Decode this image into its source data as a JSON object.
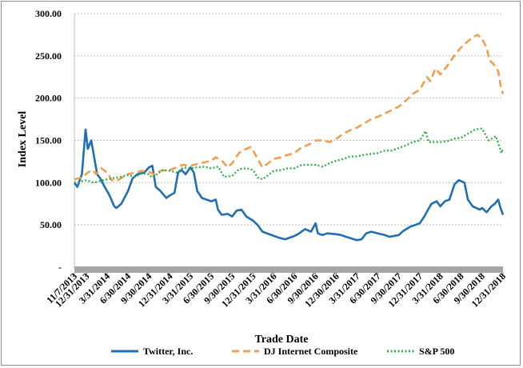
{
  "chart_data": {
    "type": "line",
    "xlabel": "Trade Date",
    "ylabel": "Index Level",
    "ylim": [
      0,
      300
    ],
    "y_ticks": [
      {
        "value": 0,
        "label": "-"
      },
      {
        "value": 50,
        "label": "50.00"
      },
      {
        "value": 100,
        "label": "100.00"
      },
      {
        "value": 150,
        "label": "150.00"
      },
      {
        "value": 200,
        "label": "200.00"
      },
      {
        "value": 250,
        "label": "250.00"
      },
      {
        "value": 300,
        "label": "300.00"
      }
    ],
    "x_tick_labels": [
      "11/7/2013",
      "12/31/2013",
      "3/31/2014",
      "6/30/2014",
      "9/30/2014",
      "12/31/2014",
      "3/31/2015",
      "6/30/2015",
      "9/30/2015",
      "12/31/2015",
      "3/31/2016",
      "6/30/2016",
      "9/30/2016",
      "12/30/2016",
      "3/31/2017",
      "6/30/2017",
      "9/30/2017",
      "12/31/2017",
      "3/31/2018",
      "6/30/2018",
      "9/30/2018",
      "12/31/2018"
    ],
    "x_tick_dates": [
      "2013-11-07",
      "2013-12-31",
      "2014-03-31",
      "2014-06-30",
      "2014-09-30",
      "2014-12-31",
      "2015-03-31",
      "2015-06-30",
      "2015-09-30",
      "2015-12-31",
      "2016-03-31",
      "2016-06-30",
      "2016-09-30",
      "2016-12-30",
      "2017-03-31",
      "2017-06-30",
      "2017-09-30",
      "2017-12-31",
      "2018-03-31",
      "2018-06-30",
      "2018-09-30",
      "2018-12-31"
    ],
    "grid": "horizontal",
    "legend_position": "bottom",
    "series": [
      {
        "name": "Twitter, Inc.",
        "color": "#1f6fb4",
        "dash": "solid",
        "points": [
          [
            "2013-11-07",
            100
          ],
          [
            "2013-11-20",
            95
          ],
          [
            "2013-12-10",
            110
          ],
          [
            "2013-12-26",
            163
          ],
          [
            "2014-01-05",
            140
          ],
          [
            "2014-01-20",
            150
          ],
          [
            "2014-02-05",
            125
          ],
          [
            "2014-02-15",
            110
          ],
          [
            "2014-03-01",
            105
          ],
          [
            "2014-03-20",
            95
          ],
          [
            "2014-04-10",
            85
          ],
          [
            "2014-05-01",
            72
          ],
          [
            "2014-05-10",
            70
          ],
          [
            "2014-06-01",
            75
          ],
          [
            "2014-06-30",
            90
          ],
          [
            "2014-07-20",
            105
          ],
          [
            "2014-08-10",
            110
          ],
          [
            "2014-09-10",
            112
          ],
          [
            "2014-09-30",
            118
          ],
          [
            "2014-10-15",
            120
          ],
          [
            "2014-10-30",
            95
          ],
          [
            "2014-11-20",
            90
          ],
          [
            "2014-12-15",
            82
          ],
          [
            "2014-12-31",
            85
          ],
          [
            "2015-01-20",
            88
          ],
          [
            "2015-02-05",
            112
          ],
          [
            "2015-02-20",
            115
          ],
          [
            "2015-03-10",
            110
          ],
          [
            "2015-03-31",
            118
          ],
          [
            "2015-04-15",
            112
          ],
          [
            "2015-04-30",
            90
          ],
          [
            "2015-05-20",
            82
          ],
          [
            "2015-06-30",
            78
          ],
          [
            "2015-07-20",
            80
          ],
          [
            "2015-07-30",
            68
          ],
          [
            "2015-08-15",
            62
          ],
          [
            "2015-09-10",
            63
          ],
          [
            "2015-09-30",
            60
          ],
          [
            "2015-10-20",
            67
          ],
          [
            "2015-11-10",
            68
          ],
          [
            "2015-12-01",
            60
          ],
          [
            "2015-12-31",
            55
          ],
          [
            "2016-01-20",
            50
          ],
          [
            "2016-02-10",
            42
          ],
          [
            "2016-03-31",
            37
          ],
          [
            "2016-04-20",
            35
          ],
          [
            "2016-05-20",
            33
          ],
          [
            "2016-06-30",
            37
          ],
          [
            "2016-07-20",
            40
          ],
          [
            "2016-08-15",
            45
          ],
          [
            "2016-09-10",
            42
          ],
          [
            "2016-09-30",
            52
          ],
          [
            "2016-10-10",
            40
          ],
          [
            "2016-10-30",
            38
          ],
          [
            "2016-11-20",
            40
          ],
          [
            "2016-12-30",
            39
          ],
          [
            "2017-01-20",
            38
          ],
          [
            "2017-02-10",
            36
          ],
          [
            "2017-03-31",
            32
          ],
          [
            "2017-04-20",
            33
          ],
          [
            "2017-05-10",
            40
          ],
          [
            "2017-06-01",
            42
          ],
          [
            "2017-06-30",
            40
          ],
          [
            "2017-07-30",
            38
          ],
          [
            "2017-08-20",
            36
          ],
          [
            "2017-09-30",
            38
          ],
          [
            "2017-10-20",
            43
          ],
          [
            "2017-11-20",
            48
          ],
          [
            "2017-12-31",
            52
          ],
          [
            "2018-01-20",
            60
          ],
          [
            "2018-02-05",
            68
          ],
          [
            "2018-02-20",
            75
          ],
          [
            "2018-03-15",
            78
          ],
          [
            "2018-03-31",
            72
          ],
          [
            "2018-04-20",
            78
          ],
          [
            "2018-05-10",
            80
          ],
          [
            "2018-06-01",
            98
          ],
          [
            "2018-06-20",
            103
          ],
          [
            "2018-07-15",
            100
          ],
          [
            "2018-07-30",
            80
          ],
          [
            "2018-08-20",
            72
          ],
          [
            "2018-09-20",
            68
          ],
          [
            "2018-09-30",
            70
          ],
          [
            "2018-10-20",
            65
          ],
          [
            "2018-11-10",
            72
          ],
          [
            "2018-11-25",
            75
          ],
          [
            "2018-12-10",
            80
          ],
          [
            "2018-12-20",
            70
          ],
          [
            "2018-12-31",
            62
          ]
        ]
      },
      {
        "name": "DJ Internet Composite",
        "color": "#f0a050",
        "dash": "dashed",
        "points": [
          [
            "2013-11-07",
            104
          ],
          [
            "2013-12-10",
            106
          ],
          [
            "2014-01-05",
            112
          ],
          [
            "2014-01-25",
            115
          ],
          [
            "2014-02-10",
            110
          ],
          [
            "2014-03-05",
            117
          ],
          [
            "2014-03-31",
            112
          ],
          [
            "2014-04-20",
            103
          ],
          [
            "2014-05-10",
            102
          ],
          [
            "2014-06-30",
            110
          ],
          [
            "2014-07-30",
            112
          ],
          [
            "2014-08-30",
            114
          ],
          [
            "2014-09-30",
            113
          ],
          [
            "2014-10-20",
            110
          ],
          [
            "2014-11-20",
            114
          ],
          [
            "2014-12-31",
            115
          ],
          [
            "2015-01-30",
            118
          ],
          [
            "2015-02-25",
            121
          ],
          [
            "2015-03-31",
            120
          ],
          [
            "2015-04-30",
            122
          ],
          [
            "2015-05-30",
            124
          ],
          [
            "2015-06-30",
            126
          ],
          [
            "2015-07-20",
            130
          ],
          [
            "2015-08-20",
            125
          ],
          [
            "2015-09-10",
            118
          ],
          [
            "2015-09-30",
            123
          ],
          [
            "2015-10-30",
            135
          ],
          [
            "2015-11-30",
            140
          ],
          [
            "2015-12-20",
            142
          ],
          [
            "2015-12-31",
            138
          ],
          [
            "2016-01-20",
            128
          ],
          [
            "2016-02-10",
            118
          ],
          [
            "2016-03-01",
            122
          ],
          [
            "2016-03-31",
            128
          ],
          [
            "2016-04-30",
            130
          ],
          [
            "2016-05-31",
            133
          ],
          [
            "2016-06-30",
            135
          ],
          [
            "2016-07-31",
            142
          ],
          [
            "2016-08-31",
            145
          ],
          [
            "2016-09-30",
            150
          ],
          [
            "2016-10-31",
            150
          ],
          [
            "2016-11-30",
            148
          ],
          [
            "2016-12-30",
            152
          ],
          [
            "2017-01-31",
            158
          ],
          [
            "2017-02-28",
            162
          ],
          [
            "2017-03-31",
            165
          ],
          [
            "2017-04-30",
            170
          ],
          [
            "2017-05-31",
            175
          ],
          [
            "2017-06-30",
            178
          ],
          [
            "2017-07-31",
            182
          ],
          [
            "2017-08-31",
            186
          ],
          [
            "2017-09-30",
            190
          ],
          [
            "2017-10-31",
            197
          ],
          [
            "2017-11-30",
            205
          ],
          [
            "2017-12-31",
            210
          ],
          [
            "2018-01-31",
            225
          ],
          [
            "2018-02-15",
            220
          ],
          [
            "2018-03-10",
            235
          ],
          [
            "2018-03-31",
            228
          ],
          [
            "2018-04-30",
            238
          ],
          [
            "2018-05-31",
            250
          ],
          [
            "2018-06-30",
            260
          ],
          [
            "2018-07-20",
            265
          ],
          [
            "2018-08-20",
            272
          ],
          [
            "2018-09-10",
            275
          ],
          [
            "2018-09-30",
            270
          ],
          [
            "2018-10-20",
            260
          ],
          [
            "2018-11-01",
            245
          ],
          [
            "2018-11-20",
            240
          ],
          [
            "2018-12-10",
            232
          ],
          [
            "2018-12-20",
            215
          ],
          [
            "2018-12-31",
            205
          ]
        ]
      },
      {
        "name": "S&P 500",
        "color": "#2fb04a",
        "dash": "dotted",
        "points": [
          [
            "2013-11-07",
            100
          ],
          [
            "2013-12-31",
            103
          ],
          [
            "2014-01-31",
            100
          ],
          [
            "2014-03-31",
            104
          ],
          [
            "2014-05-31",
            107
          ],
          [
            "2014-06-30",
            109
          ],
          [
            "2014-07-31",
            107
          ],
          [
            "2014-08-31",
            111
          ],
          [
            "2014-09-30",
            110
          ],
          [
            "2014-10-15",
            106
          ],
          [
            "2014-11-30",
            115
          ],
          [
            "2014-12-31",
            114
          ],
          [
            "2015-01-31",
            112
          ],
          [
            "2015-02-28",
            118
          ],
          [
            "2015-03-31",
            117
          ],
          [
            "2015-04-30",
            118
          ],
          [
            "2015-05-31",
            119
          ],
          [
            "2015-06-30",
            117
          ],
          [
            "2015-07-31",
            119
          ],
          [
            "2015-08-25",
            107
          ],
          [
            "2015-09-30",
            108
          ],
          [
            "2015-10-31",
            116
          ],
          [
            "2015-11-30",
            117
          ],
          [
            "2015-12-31",
            115
          ],
          [
            "2016-01-20",
            106
          ],
          [
            "2016-02-11",
            104
          ],
          [
            "2016-03-31",
            114
          ],
          [
            "2016-04-30",
            115
          ],
          [
            "2016-05-31",
            117
          ],
          [
            "2016-06-30",
            117
          ],
          [
            "2016-07-31",
            121
          ],
          [
            "2016-08-31",
            121
          ],
          [
            "2016-09-30",
            121
          ],
          [
            "2016-10-31",
            119
          ],
          [
            "2016-11-30",
            123
          ],
          [
            "2016-12-30",
            126
          ],
          [
            "2017-01-31",
            128
          ],
          [
            "2017-02-28",
            131
          ],
          [
            "2017-03-31",
            131
          ],
          [
            "2017-04-30",
            133
          ],
          [
            "2017-05-31",
            134
          ],
          [
            "2017-06-30",
            135
          ],
          [
            "2017-07-31",
            138
          ],
          [
            "2017-08-31",
            138
          ],
          [
            "2017-09-30",
            141
          ],
          [
            "2017-10-31",
            144
          ],
          [
            "2017-11-30",
            148
          ],
          [
            "2017-12-31",
            150
          ],
          [
            "2018-01-26",
            161
          ],
          [
            "2018-02-08",
            148
          ],
          [
            "2018-03-31",
            148
          ],
          [
            "2018-04-30",
            149
          ],
          [
            "2018-05-31",
            152
          ],
          [
            "2018-06-30",
            153
          ],
          [
            "2018-07-31",
            158
          ],
          [
            "2018-08-31",
            163
          ],
          [
            "2018-09-30",
            164
          ],
          [
            "2018-10-29",
            150
          ],
          [
            "2018-11-30",
            155
          ],
          [
            "2018-12-24",
            135
          ],
          [
            "2018-12-31",
            141
          ]
        ]
      }
    ]
  }
}
